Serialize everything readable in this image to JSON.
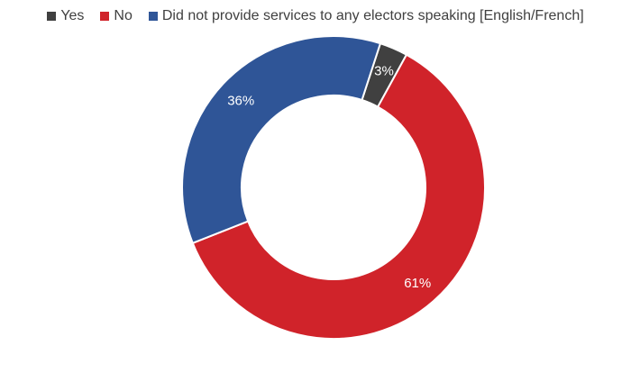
{
  "chart_data": {
    "type": "pie",
    "style": "donut",
    "title": "",
    "categories": [
      "Yes",
      "No",
      "Did not provide services to any electors speaking [English/French]"
    ],
    "values": [
      3,
      61,
      36
    ],
    "value_labels": [
      "3%",
      "61%",
      "36%"
    ],
    "colors": [
      "#404040",
      "#d0232a",
      "#2f5597"
    ],
    "legend_position": "top"
  }
}
